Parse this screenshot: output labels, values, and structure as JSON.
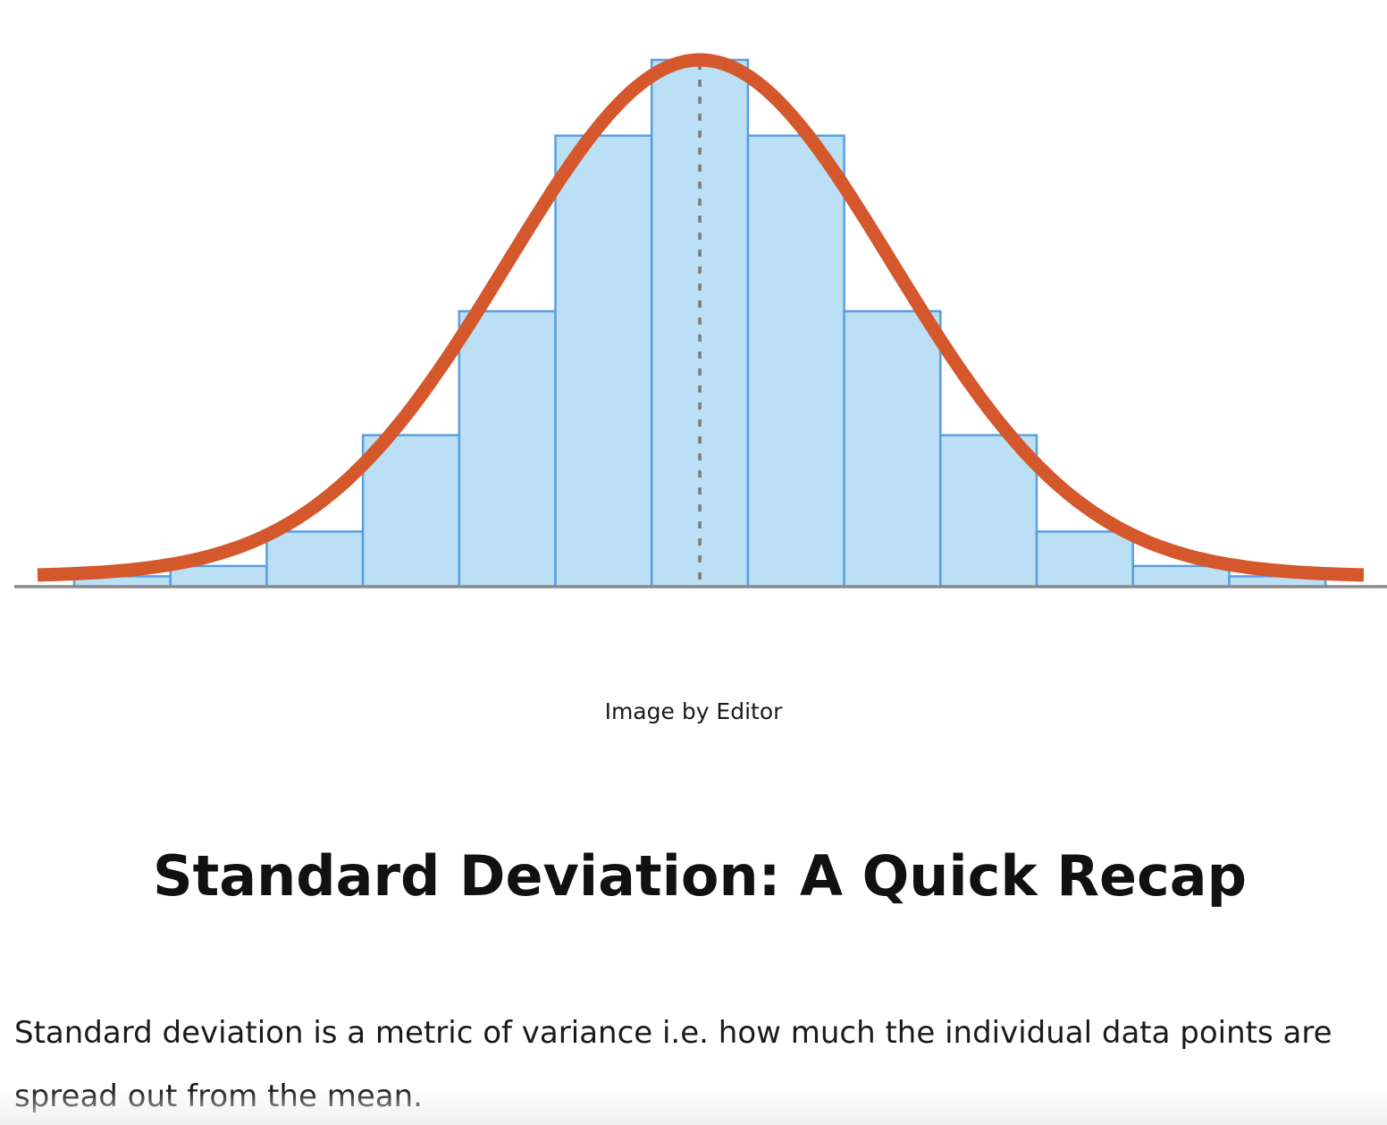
{
  "chart_data": {
    "type": "bar",
    "bins": [
      1,
      2,
      3,
      4,
      5,
      6,
      7,
      8,
      9,
      10,
      11,
      12,
      13
    ],
    "values": [
      0.3,
      0.6,
      1.6,
      4.4,
      8.0,
      13.1,
      15.3,
      13.1,
      8.0,
      4.4,
      1.6,
      0.6,
      0.3
    ],
    "curve": {
      "type": "normal",
      "mean": 7,
      "peak": 15.3,
      "sd": 2.0,
      "color": "#d4582c"
    },
    "mean_line": {
      "x": 7,
      "style": "dashed",
      "color": "#7a7a7a"
    },
    "ylim": [
      0,
      16
    ],
    "bar_fill": "#bbdff4",
    "bar_stroke": "#5a9ee0",
    "baseline_color": "#8a8a8a",
    "xlabel": "",
    "ylabel": "",
    "title": ""
  },
  "figure": {
    "caption": "Image by Editor"
  },
  "article": {
    "heading": "Standard Deviation: A Quick Recap",
    "paragraph": "Standard deviation is a metric of variance i.e. how much the individual data points are spread out from the mean."
  }
}
